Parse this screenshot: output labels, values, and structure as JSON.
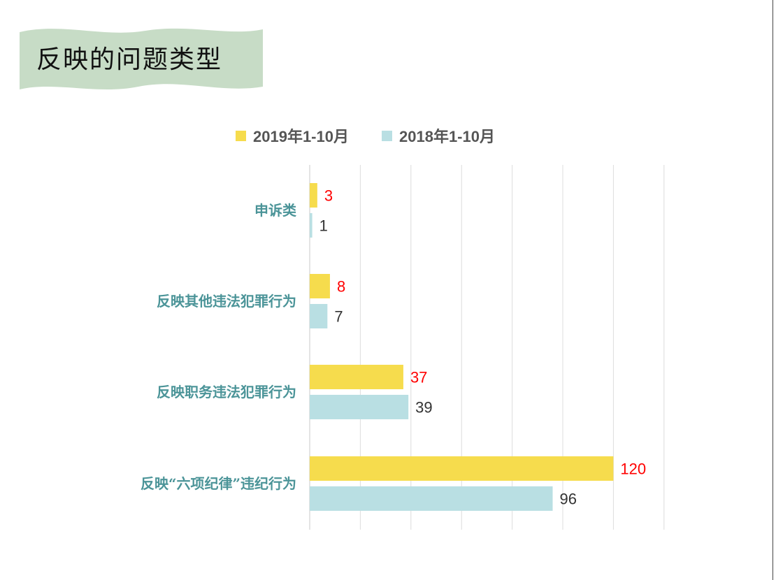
{
  "slide": {
    "title": "反映的问题类型",
    "banner_color": "#c7dcc6"
  },
  "chart_data": {
    "type": "bar",
    "orientation": "horizontal",
    "categories": [
      "申诉类",
      "反映其他违法犯罪行为",
      "反映职务违法犯罪行为",
      "反映“六项纪律”违纪行为"
    ],
    "series": [
      {
        "name": "2019年1-10月",
        "values": [
          3,
          8,
          37,
          120
        ],
        "color": "#f6dc4d",
        "label_color": "#ff0000"
      },
      {
        "name": "2018年1-10月",
        "values": [
          1,
          7,
          39,
          96
        ],
        "color": "#b9dfe3",
        "label_color": "#333333"
      }
    ],
    "xlim": [
      0,
      140
    ],
    "grid": true,
    "legend_position": "top",
    "category_label_color": "#4b9498"
  }
}
